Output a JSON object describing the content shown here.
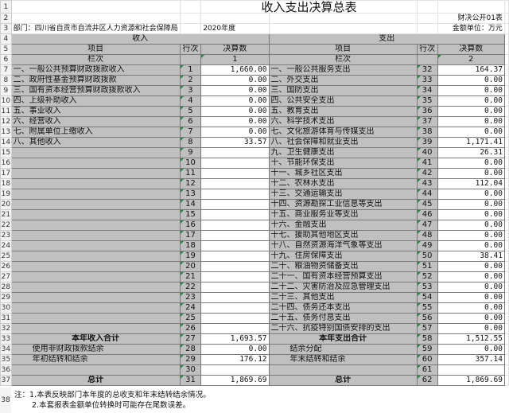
{
  "title": "收入支出决算总表",
  "form_code": "财决公开01表",
  "department": "部门：四川省自贡市自流井区人力资源和社会保障局",
  "year": "2020年度",
  "unit": "金额单位：万元",
  "headers": {
    "income": "收入",
    "expense": "支出",
    "item": "项目",
    "line": "行次",
    "amount": "决算数",
    "column_label": "栏次",
    "col1": "1",
    "col2": "2"
  },
  "rows": [
    {
      "li": "一、一般公共预算财政拨款收入",
      "ln": "1",
      "la": "1,660.00",
      "ri": "一、一般公共服务支出",
      "rn": "32",
      "ra": "164.37"
    },
    {
      "li": "二、政府性基金预算财政拨款",
      "ln": "2",
      "la": "0.00",
      "ri": "二、外交支出",
      "rn": "33",
      "ra": "0.00"
    },
    {
      "li": "三、国有资本经营预算财政拨款收入",
      "ln": "3",
      "la": "0.00",
      "ri": "三、国防支出",
      "rn": "34",
      "ra": "0.00"
    },
    {
      "li": "四、上级补助收入",
      "ln": "4",
      "la": "0.00",
      "ri": "四、公共安全支出",
      "rn": "35",
      "ra": "0.00"
    },
    {
      "li": "五、事业收入",
      "ln": "5",
      "la": "0.00",
      "ri": "五、教育支出",
      "rn": "36",
      "ra": "0.00"
    },
    {
      "li": "六、经营收入",
      "ln": "6",
      "la": "0.00",
      "ri": "六、科学技术支出",
      "rn": "37",
      "ra": "0.00"
    },
    {
      "li": "七、附属单位上缴收入",
      "ln": "7",
      "la": "0.00",
      "ri": "七、文化旅游体育与传媒支出",
      "rn": "38",
      "ra": "0.00"
    },
    {
      "li": "八、其他收入",
      "ln": "8",
      "la": "33.57",
      "ri": "八、社会保障和就业支出",
      "rn": "39",
      "ra": "1,171.41"
    },
    {
      "li": "",
      "ln": "9",
      "la": "",
      "ri": "九、卫生健康支出",
      "rn": "40",
      "ra": "26.31"
    },
    {
      "li": "",
      "ln": "10",
      "la": "",
      "ri": "十、节能环保支出",
      "rn": "41",
      "ra": "0.00"
    },
    {
      "li": "",
      "ln": "11",
      "la": "",
      "ri": "十一、城乡社区支出",
      "rn": "42",
      "ra": "0.00"
    },
    {
      "li": "",
      "ln": "12",
      "la": "",
      "ri": "十二、农林水支出",
      "rn": "43",
      "ra": "112.04"
    },
    {
      "li": "",
      "ln": "13",
      "la": "",
      "ri": "十三、交通运输支出",
      "rn": "44",
      "ra": "0.00"
    },
    {
      "li": "",
      "ln": "14",
      "la": "",
      "ri": "十四、资源勘探工业信息等支出",
      "rn": "45",
      "ra": "0.00"
    },
    {
      "li": "",
      "ln": "15",
      "la": "",
      "ri": "十五、商业服务业等支出",
      "rn": "46",
      "ra": "0.00"
    },
    {
      "li": "",
      "ln": "16",
      "la": "",
      "ri": "十六、金融支出",
      "rn": "47",
      "ra": "0.00"
    },
    {
      "li": "",
      "ln": "17",
      "la": "",
      "ri": "十七、援助其他地区支出",
      "rn": "48",
      "ra": "0.00"
    },
    {
      "li": "",
      "ln": "18",
      "la": "",
      "ri": "十八、自然资源海洋气象等支出",
      "rn": "49",
      "ra": "0.00"
    },
    {
      "li": "",
      "ln": "19",
      "la": "",
      "ri": "十九、住房保障支出",
      "rn": "50",
      "ra": "38.41"
    },
    {
      "li": "",
      "ln": "20",
      "la": "",
      "ri": "二十、粮油物资储备支出",
      "rn": "51",
      "ra": "0.00"
    },
    {
      "li": "",
      "ln": "21",
      "la": "",
      "ri": "二十一、国有资本经营预算支出",
      "rn": "52",
      "ra": "0.00"
    },
    {
      "li": "",
      "ln": "22",
      "la": "",
      "ri": "二十二、灾害防治及应急管理支出",
      "rn": "53",
      "ra": "0.00"
    },
    {
      "li": "",
      "ln": "23",
      "la": "",
      "ri": "二十三、其他支出",
      "rn": "54",
      "ra": "0.00"
    },
    {
      "li": "",
      "ln": "24",
      "la": "",
      "ri": "二十四、债务还本支出",
      "rn": "55",
      "ra": "0.00"
    },
    {
      "li": "",
      "ln": "25",
      "la": "",
      "ri": "二十五、债务付息支出",
      "rn": "56",
      "ra": "0.00"
    },
    {
      "li": "",
      "ln": "26",
      "la": "",
      "ri": "二十六、抗疫特别国债安排的支出",
      "rn": "57",
      "ra": "0.00"
    }
  ],
  "summary": [
    {
      "li": "本年收入合计",
      "ln": "27",
      "la": "1,693.57",
      "ri": "本年支出合计",
      "rn": "58",
      "ra": "1,512.55",
      "bold": true
    },
    {
      "li": "使用非财政拨款结余",
      "ln": "28",
      "la": "0.00",
      "ri": "结余分配",
      "rn": "59",
      "ra": "0.00",
      "indent": true
    },
    {
      "li": "年初结转和结余",
      "ln": "29",
      "la": "176.12",
      "ri": "年末结转和结余",
      "rn": "60",
      "ra": "357.14",
      "indent": true
    },
    {
      "li": "",
      "ln": "30",
      "la": "",
      "ri": "",
      "rn": "61",
      "ra": ""
    },
    {
      "li": "总计",
      "ln": "31",
      "la": "1,869.69",
      "ri": "总计",
      "rn": "62",
      "ra": "1,869.69",
      "bold": true
    }
  ],
  "notes": [
    "注：1.本表反映部门本年度的总收支和年末结转结余情况。",
    "2.本套报表金额单位转换时可能存在尾数误差。"
  ],
  "colors": {
    "header_gray": "#c0c0c0",
    "grid": "#d8d8d8",
    "row_header": "#f3f3f3"
  }
}
